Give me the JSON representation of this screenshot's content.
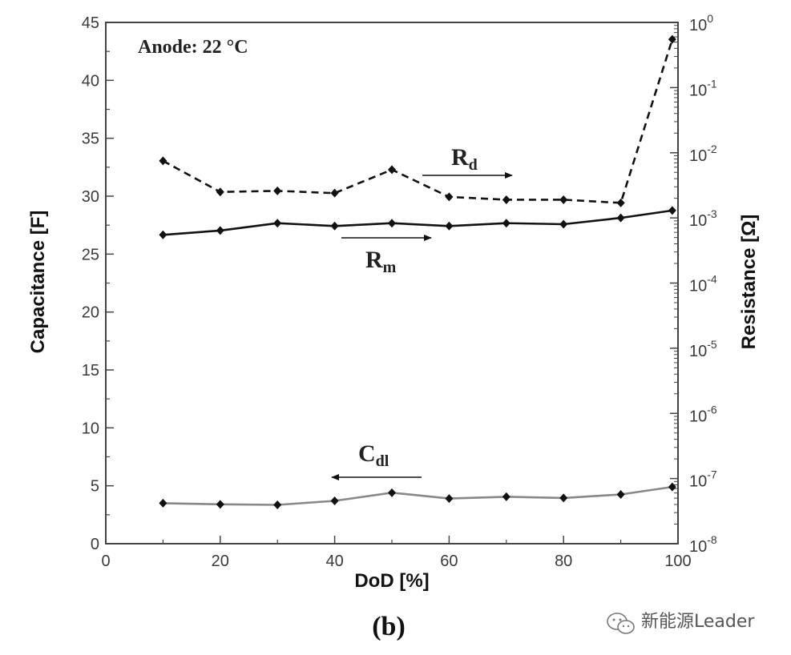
{
  "chart_data": {
    "type": "line",
    "annotation": "Anode: 22 °C",
    "panel_label": "(b)",
    "xlabel": "DoD [%]",
    "ylabel_left": "Capacitance [F]",
    "ylabel_right": "Resistance [Ω]",
    "x_range": [
      0,
      100
    ],
    "x_ticks": [
      0,
      20,
      40,
      60,
      80,
      100
    ],
    "y_left_range": [
      0,
      45
    ],
    "y_left_ticks": [
      0,
      5,
      10,
      15,
      20,
      25,
      30,
      35,
      40,
      45
    ],
    "y_right_scale": "log",
    "y_right_range": [
      1e-08,
      1
    ],
    "y_right_ticks": [
      {
        "value": 1e-08,
        "base": "10",
        "exp": "-8"
      },
      {
        "value": 1e-07,
        "base": "10",
        "exp": "-7"
      },
      {
        "value": 1e-06,
        "base": "10",
        "exp": "-6"
      },
      {
        "value": 1e-05,
        "base": "10",
        "exp": "-5"
      },
      {
        "value": 0.0001,
        "base": "10",
        "exp": "-4"
      },
      {
        "value": 0.001,
        "base": "10",
        "exp": "-3"
      },
      {
        "value": 0.01,
        "base": "10",
        "exp": "-2"
      },
      {
        "value": 0.1,
        "base": "10",
        "exp": "-1"
      },
      {
        "value": 1,
        "base": "10",
        "exp": "0"
      }
    ],
    "grid": false,
    "legend": "none",
    "series": [
      {
        "name": "Rd",
        "label_main": "R",
        "label_sub": "d",
        "axis": "right",
        "style": "dashed",
        "color": "#111111",
        "arrow": "right",
        "x": [
          10,
          20,
          30,
          40,
          50,
          60,
          70,
          80,
          90,
          99
        ],
        "values": [
          0.0075,
          0.0025,
          0.0026,
          0.0024,
          0.0055,
          0.0021,
          0.0019,
          0.0019,
          0.0017,
          0.55
        ]
      },
      {
        "name": "Rm",
        "label_main": "R",
        "label_sub": "m",
        "axis": "right",
        "style": "solid",
        "color": "#111111",
        "arrow": "right",
        "x": [
          10,
          20,
          30,
          40,
          50,
          60,
          70,
          80,
          90,
          99
        ],
        "values": [
          0.00055,
          0.00064,
          0.00083,
          0.00075,
          0.00083,
          0.00075,
          0.00083,
          0.0008,
          0.001,
          0.0013
        ]
      },
      {
        "name": "Cdl",
        "label_main": "C",
        "label_sub": "dl",
        "axis": "left",
        "style": "solid",
        "color": "#888888",
        "arrow": "left",
        "x": [
          10,
          20,
          30,
          40,
          50,
          60,
          70,
          80,
          90,
          99
        ],
        "values": [
          3.5,
          3.4,
          3.35,
          3.7,
          4.4,
          3.9,
          4.05,
          3.95,
          4.25,
          4.9
        ]
      }
    ]
  },
  "watermark": {
    "icon": "wechat-icon",
    "text": "新能源Leader"
  }
}
